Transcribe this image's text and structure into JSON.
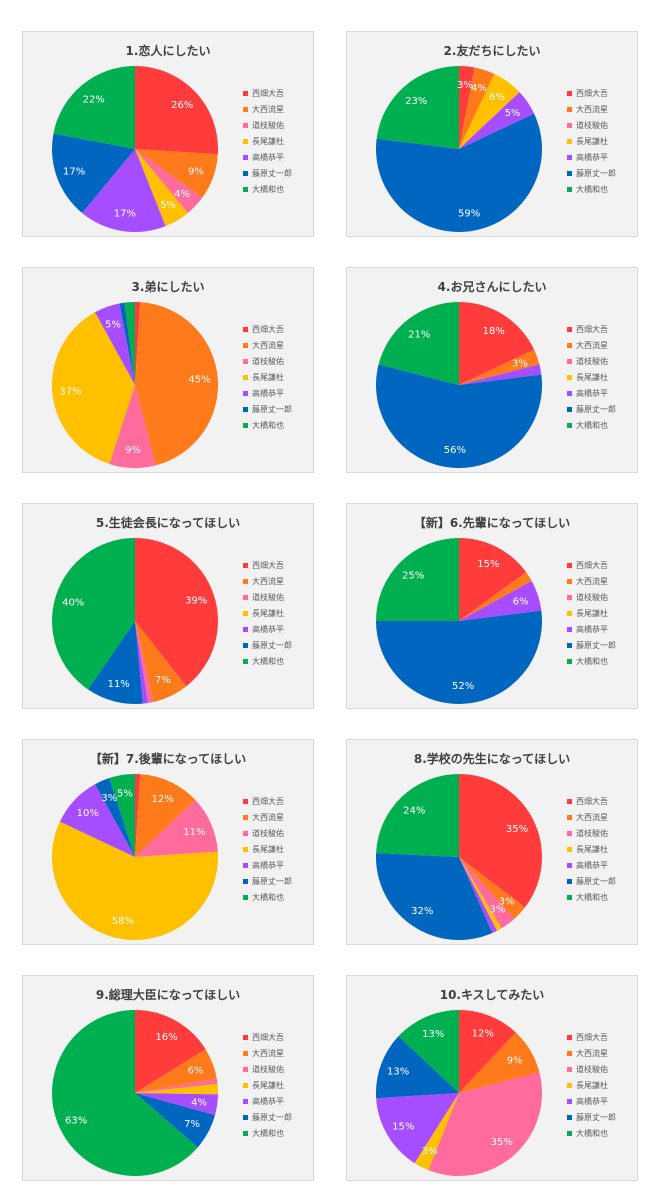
{
  "legend": [
    "西畑大吾",
    "大西流星",
    "道枝駿佑",
    "長尾謙杜",
    "高橋恭平",
    "藤原丈一郎",
    "大橋和也"
  ],
  "colors": [
    "#ff3b3b",
    "#ff7a1a",
    "#ff6b9d",
    "#ffc000",
    "#a64dff",
    "#0066c0",
    "#00b050"
  ],
  "chart_data": [
    {
      "type": "pie",
      "title": "1.恋人にしたい",
      "categories": [
        "西畑大吾",
        "大西流星",
        "道枝駿佑",
        "長尾謙杜",
        "高橋恭平",
        "藤原丈一郎",
        "大橋和也"
      ],
      "values": [
        26,
        9,
        4,
        5,
        17,
        17,
        22
      ]
    },
    {
      "type": "pie",
      "title": "2.友だちにしたい",
      "categories": [
        "西畑大吾",
        "大西流星",
        "道枝駿佑",
        "長尾謙杜",
        "高橋恭平",
        "藤原丈一郎",
        "大橋和也"
      ],
      "values": [
        3,
        4,
        0,
        6,
        5,
        59,
        23
      ]
    },
    {
      "type": "pie",
      "title": "3.弟にしたい",
      "categories": [
        "西畑大吾",
        "大西流星",
        "道枝駿佑",
        "長尾謙杜",
        "高橋恭平",
        "藤原丈一郎",
        "大橋和也"
      ],
      "values": [
        1,
        45,
        9,
        37,
        5,
        1,
        2
      ]
    },
    {
      "type": "pie",
      "title": "4.お兄さんにしたい",
      "categories": [
        "西畑大吾",
        "大西流星",
        "道枝駿佑",
        "長尾謙杜",
        "高橋恭平",
        "藤原丈一郎",
        "大橋和也"
      ],
      "values": [
        18,
        3,
        0,
        0,
        2,
        56,
        21
      ]
    },
    {
      "type": "pie",
      "title": "5.生徒会長になってほしい",
      "categories": [
        "西畑大吾",
        "大西流星",
        "道枝駿佑",
        "長尾謙杜",
        "高橋恭平",
        "藤原丈一郎",
        "大橋和也"
      ],
      "values": [
        39,
        7,
        1,
        0,
        1,
        11,
        40
      ]
    },
    {
      "type": "pie",
      "title": "【新】6.先輩になってほしい",
      "categories": [
        "西畑大吾",
        "大西流星",
        "道枝駿佑",
        "長尾謙杜",
        "高橋恭平",
        "藤原丈一郎",
        "大橋和也"
      ],
      "values": [
        15,
        2,
        0,
        0,
        6,
        52,
        25
      ]
    },
    {
      "type": "pie",
      "title": "【新】7.後輩になってほしい",
      "categories": [
        "西畑大吾",
        "大西流星",
        "道枝駿佑",
        "長尾謙杜",
        "高橋恭平",
        "藤原丈一郎",
        "大橋和也"
      ],
      "values": [
        1,
        12,
        11,
        58,
        10,
        3,
        5
      ]
    },
    {
      "type": "pie",
      "title": "8.学校の先生になってほしい",
      "categories": [
        "西畑大吾",
        "大西流星",
        "道枝駿佑",
        "長尾謙杜",
        "高橋恭平",
        "藤原丈一郎",
        "大橋和也"
      ],
      "values": [
        35,
        3,
        3,
        1,
        1,
        32,
        24
      ]
    },
    {
      "type": "pie",
      "title": "9.総理大臣になってほしい",
      "categories": [
        "西畑大吾",
        "大西流星",
        "道枝駿佑",
        "長尾謙杜",
        "高橋恭平",
        "藤原丈一郎",
        "大橋和也"
      ],
      "values": [
        16,
        6,
        1,
        2,
        4,
        7,
        63
      ]
    },
    {
      "type": "pie",
      "title": "10.キスしてみたい",
      "categories": [
        "西畑大吾",
        "大西流星",
        "道枝駿佑",
        "長尾謙杜",
        "高橋恭平",
        "藤原丈一郎",
        "大橋和也"
      ],
      "values": [
        12,
        9,
        35,
        3,
        15,
        13,
        13
      ]
    }
  ]
}
